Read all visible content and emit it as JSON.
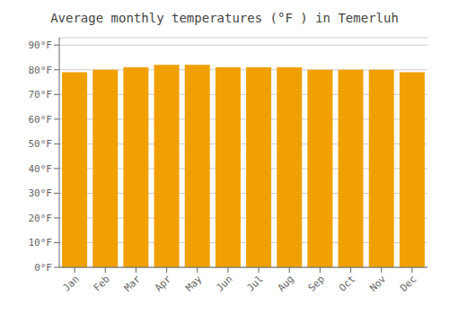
{
  "chart_data": {
    "type": "bar",
    "title": "Average monthly temperatures (°F ) in Temerluh",
    "categories": [
      "Jan",
      "Feb",
      "Mar",
      "Apr",
      "May",
      "Jun",
      "Jul",
      "Aug",
      "Sep",
      "Oct",
      "Nov",
      "Dec"
    ],
    "values": [
      79,
      80,
      81,
      82,
      82,
      81,
      81,
      81,
      80,
      80,
      80,
      79
    ],
    "color": "#F0A000",
    "ylim": [
      0,
      93
    ],
    "yticks": [
      {
        "value": 0,
        "label": "0°F"
      },
      {
        "value": 10,
        "label": "10°F"
      },
      {
        "value": 20,
        "label": "20°F"
      },
      {
        "value": 30,
        "label": "30°F"
      },
      {
        "value": 40,
        "label": "40°F"
      },
      {
        "value": 50,
        "label": "50°F"
      },
      {
        "value": 60,
        "label": "60°F"
      },
      {
        "value": 70,
        "label": "70°F"
      },
      {
        "value": 80,
        "label": "80°F"
      },
      {
        "value": 90,
        "label": "90°F"
      }
    ],
    "grid": true
  }
}
